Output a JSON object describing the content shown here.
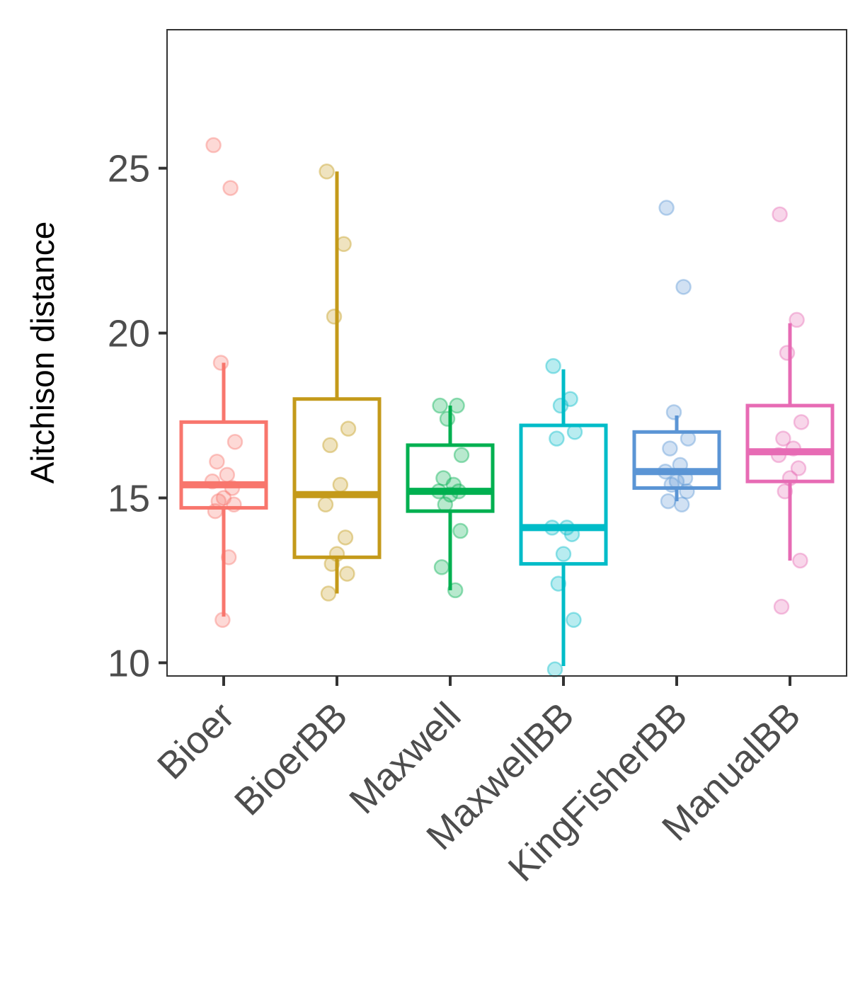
{
  "chart_data": {
    "type": "boxplot",
    "title": "",
    "xlabel": "",
    "ylabel": "Aitchison distance",
    "ylim": [
      9.6,
      29.2
    ],
    "yticks": [
      10,
      15,
      20,
      25
    ],
    "grid": false,
    "legend": "none",
    "categories": [
      "Bioer",
      "BioerBB",
      "Maxwell",
      "MaxwellBB",
      "KingFisherBB",
      "ManualBB"
    ],
    "series": [
      {
        "name": "Bioer",
        "color": "#F8766D",
        "q1": 14.7,
        "median": 15.4,
        "q3": 17.3,
        "whisker_low": 11.4,
        "whisker_high": 19.1,
        "points": [
          25.7,
          24.4,
          19.1,
          16.7,
          16.1,
          15.7,
          15.5,
          15.3,
          15.0,
          14.9,
          14.8,
          14.6,
          13.2,
          11.3
        ]
      },
      {
        "name": "BioerBB",
        "color": "#C49A1A",
        "q1": 13.2,
        "median": 15.1,
        "q3": 18.0,
        "whisker_low": 12.1,
        "whisker_high": 24.9,
        "points": [
          24.9,
          22.7,
          20.5,
          17.1,
          16.6,
          15.4,
          14.8,
          13.8,
          13.3,
          13.0,
          12.7,
          12.1
        ]
      },
      {
        "name": "Maxwell",
        "color": "#00B050",
        "q1": 14.6,
        "median": 15.2,
        "q3": 16.6,
        "whisker_low": 12.2,
        "whisker_high": 17.8,
        "points": [
          17.8,
          17.8,
          17.4,
          16.3,
          15.6,
          15.4,
          15.2,
          15.2,
          15.1,
          14.8,
          14.0,
          12.9,
          12.2
        ]
      },
      {
        "name": "MaxwellBB",
        "color": "#00BCC8",
        "q1": 13.0,
        "median": 14.1,
        "q3": 17.2,
        "whisker_low": 9.9,
        "whisker_high": 18.9,
        "points": [
          19.0,
          18.0,
          17.8,
          17.0,
          16.8,
          14.1,
          14.1,
          13.9,
          13.3,
          12.4,
          11.3,
          9.8
        ]
      },
      {
        "name": "KingFisherBB",
        "color": "#5B95D5",
        "q1": 15.3,
        "median": 15.8,
        "q3": 17.0,
        "whisker_low": 14.9,
        "whisker_high": 17.5,
        "points": [
          23.8,
          21.4,
          17.6,
          16.8,
          16.5,
          16.0,
          15.8,
          15.6,
          15.5,
          15.4,
          15.2,
          14.9,
          14.8
        ]
      },
      {
        "name": "ManualBB",
        "color": "#E76BB4",
        "q1": 15.5,
        "median": 16.4,
        "q3": 17.8,
        "whisker_low": 13.1,
        "whisker_high": 20.3,
        "points": [
          23.6,
          20.4,
          19.4,
          17.3,
          16.8,
          16.5,
          16.3,
          15.9,
          15.6,
          15.2,
          13.1,
          11.7
        ]
      }
    ]
  }
}
